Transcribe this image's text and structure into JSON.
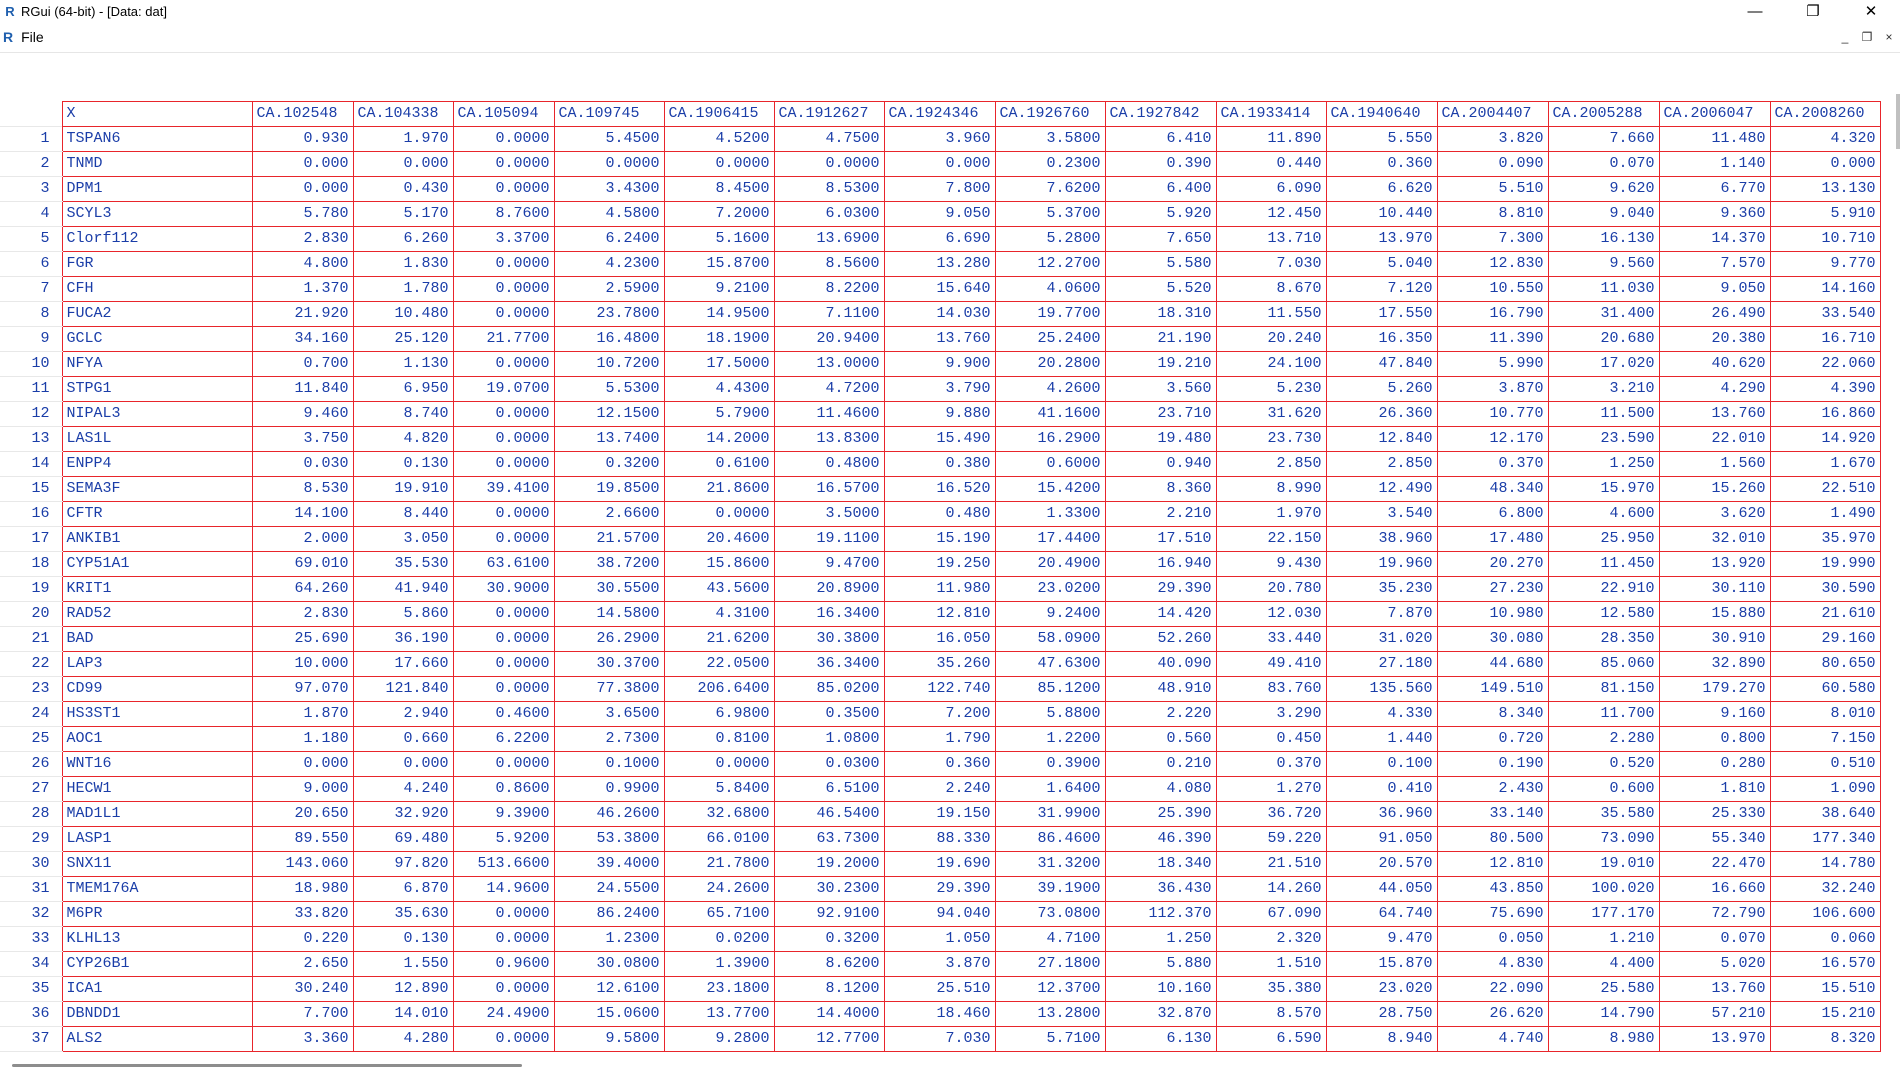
{
  "window": {
    "logo": "R",
    "title": "RGui (64-bit) - [Data: dat]",
    "minimize_icon": "—",
    "maximize_icon": "❐",
    "close_icon": "✕"
  },
  "menubar": {
    "logo": "R",
    "file_label": "File",
    "mdi_minimize": "_",
    "mdi_restore": "❐",
    "mdi_close": "×"
  },
  "grid": {
    "columns": [
      "X",
      "CA.102548",
      "CA.104338",
      "CA.105094",
      "CA.109745",
      "CA.1906415",
      "CA.1912627",
      "CA.1924346",
      "CA.1926760",
      "CA.1927842",
      "CA.1933414",
      "CA.1940640",
      "CA.2004407",
      "CA.2005288",
      "CA.2006047",
      "CA.2008260"
    ],
    "rows": [
      [
        "1",
        "TSPAN6",
        "0.930",
        "1.970",
        "0.0000",
        "5.4500",
        "4.5200",
        "4.7500",
        "3.960",
        "3.5800",
        "6.410",
        "11.890",
        "5.550",
        "3.820",
        "7.660",
        "11.480",
        "4.320"
      ],
      [
        "2",
        "TNMD",
        "0.000",
        "0.000",
        "0.0000",
        "0.0000",
        "0.0000",
        "0.0000",
        "0.000",
        "0.2300",
        "0.390",
        "0.440",
        "0.360",
        "0.090",
        "0.070",
        "1.140",
        "0.000"
      ],
      [
        "3",
        "DPM1",
        "0.000",
        "0.430",
        "0.0000",
        "3.4300",
        "8.4500",
        "8.5300",
        "7.800",
        "7.6200",
        "6.400",
        "6.090",
        "6.620",
        "5.510",
        "9.620",
        "6.770",
        "13.130"
      ],
      [
        "4",
        "SCYL3",
        "5.780",
        "5.170",
        "8.7600",
        "4.5800",
        "7.2000",
        "6.0300",
        "9.050",
        "5.3700",
        "5.920",
        "12.450",
        "10.440",
        "8.810",
        "9.040",
        "9.360",
        "5.910"
      ],
      [
        "5",
        "Clorf112",
        "2.830",
        "6.260",
        "3.3700",
        "6.2400",
        "5.1600",
        "13.6900",
        "6.690",
        "5.2800",
        "7.650",
        "13.710",
        "13.970",
        "7.300",
        "16.130",
        "14.370",
        "10.710"
      ],
      [
        "6",
        "FGR",
        "4.800",
        "1.830",
        "0.0000",
        "4.2300",
        "15.8700",
        "8.5600",
        "13.280",
        "12.2700",
        "5.580",
        "7.030",
        "5.040",
        "12.830",
        "9.560",
        "7.570",
        "9.770"
      ],
      [
        "7",
        "CFH",
        "1.370",
        "1.780",
        "0.0000",
        "2.5900",
        "9.2100",
        "8.2200",
        "15.640",
        "4.0600",
        "5.520",
        "8.670",
        "7.120",
        "10.550",
        "11.030",
        "9.050",
        "14.160"
      ],
      [
        "8",
        "FUCA2",
        "21.920",
        "10.480",
        "0.0000",
        "23.7800",
        "14.9500",
        "7.1100",
        "14.030",
        "19.7700",
        "18.310",
        "11.550",
        "17.550",
        "16.790",
        "31.400",
        "26.490",
        "33.540"
      ],
      [
        "9",
        "GCLC",
        "34.160",
        "25.120",
        "21.7700",
        "16.4800",
        "18.1900",
        "20.9400",
        "13.760",
        "25.2400",
        "21.190",
        "20.240",
        "16.350",
        "11.390",
        "20.680",
        "20.380",
        "16.710"
      ],
      [
        "10",
        "NFYA",
        "0.700",
        "1.130",
        "0.0000",
        "10.7200",
        "17.5000",
        "13.0000",
        "9.900",
        "20.2800",
        "19.210",
        "24.100",
        "47.840",
        "5.990",
        "17.020",
        "40.620",
        "22.060"
      ],
      [
        "11",
        "STPG1",
        "11.840",
        "6.950",
        "19.0700",
        "5.5300",
        "4.4300",
        "4.7200",
        "3.790",
        "4.2600",
        "3.560",
        "5.230",
        "5.260",
        "3.870",
        "3.210",
        "4.290",
        "4.390"
      ],
      [
        "12",
        "NIPAL3",
        "9.460",
        "8.740",
        "0.0000",
        "12.1500",
        "5.7900",
        "11.4600",
        "9.880",
        "41.1600",
        "23.710",
        "31.620",
        "26.360",
        "10.770",
        "11.500",
        "13.760",
        "16.860"
      ],
      [
        "13",
        "LAS1L",
        "3.750",
        "4.820",
        "0.0000",
        "13.7400",
        "14.2000",
        "13.8300",
        "15.490",
        "16.2900",
        "19.480",
        "23.730",
        "12.840",
        "12.170",
        "23.590",
        "22.010",
        "14.920"
      ],
      [
        "14",
        "ENPP4",
        "0.030",
        "0.130",
        "0.0000",
        "0.3200",
        "0.6100",
        "0.4800",
        "0.380",
        "0.6000",
        "0.940",
        "2.850",
        "2.850",
        "0.370",
        "1.250",
        "1.560",
        "1.670"
      ],
      [
        "15",
        "SEMA3F",
        "8.530",
        "19.910",
        "39.4100",
        "19.8500",
        "21.8600",
        "16.5700",
        "16.520",
        "15.4200",
        "8.360",
        "8.990",
        "12.490",
        "48.340",
        "15.970",
        "15.260",
        "22.510"
      ],
      [
        "16",
        "CFTR",
        "14.100",
        "8.440",
        "0.0000",
        "2.6600",
        "0.0000",
        "3.5000",
        "0.480",
        "1.3300",
        "2.210",
        "1.970",
        "3.540",
        "6.800",
        "4.600",
        "3.620",
        "1.490"
      ],
      [
        "17",
        "ANKIB1",
        "2.000",
        "3.050",
        "0.0000",
        "21.5700",
        "20.4600",
        "19.1100",
        "15.190",
        "17.4400",
        "17.510",
        "22.150",
        "38.960",
        "17.480",
        "25.950",
        "32.010",
        "35.970"
      ],
      [
        "18",
        "CYP51A1",
        "69.010",
        "35.530",
        "63.6100",
        "38.7200",
        "15.8600",
        "9.4700",
        "19.250",
        "20.4900",
        "16.940",
        "9.430",
        "19.960",
        "20.270",
        "11.450",
        "13.920",
        "19.990"
      ],
      [
        "19",
        "KRIT1",
        "64.260",
        "41.940",
        "30.9000",
        "30.5500",
        "43.5600",
        "20.8900",
        "11.980",
        "23.0200",
        "29.390",
        "20.780",
        "35.230",
        "27.230",
        "22.910",
        "30.110",
        "30.590"
      ],
      [
        "20",
        "RAD52",
        "2.830",
        "5.860",
        "0.0000",
        "14.5800",
        "4.3100",
        "16.3400",
        "12.810",
        "9.2400",
        "14.420",
        "12.030",
        "7.870",
        "10.980",
        "12.580",
        "15.880",
        "21.610"
      ],
      [
        "21",
        "BAD",
        "25.690",
        "36.190",
        "0.0000",
        "26.2900",
        "21.6200",
        "30.3800",
        "16.050",
        "58.0900",
        "52.260",
        "33.440",
        "31.020",
        "30.080",
        "28.350",
        "30.910",
        "29.160"
      ],
      [
        "22",
        "LAP3",
        "10.000",
        "17.660",
        "0.0000",
        "30.3700",
        "22.0500",
        "36.3400",
        "35.260",
        "47.6300",
        "40.090",
        "49.410",
        "27.180",
        "44.680",
        "85.060",
        "32.890",
        "80.650"
      ],
      [
        "23",
        "CD99",
        "97.070",
        "121.840",
        "0.0000",
        "77.3800",
        "206.6400",
        "85.0200",
        "122.740",
        "85.1200",
        "48.910",
        "83.760",
        "135.560",
        "149.510",
        "81.150",
        "179.270",
        "60.580"
      ],
      [
        "24",
        "HS3ST1",
        "1.870",
        "2.940",
        "0.4600",
        "3.6500",
        "6.9800",
        "0.3500",
        "7.200",
        "5.8800",
        "2.220",
        "3.290",
        "4.330",
        "8.340",
        "11.700",
        "9.160",
        "8.010"
      ],
      [
        "25",
        "AOC1",
        "1.180",
        "0.660",
        "6.2200",
        "2.7300",
        "0.8100",
        "1.0800",
        "1.790",
        "1.2200",
        "0.560",
        "0.450",
        "1.440",
        "0.720",
        "2.280",
        "0.800",
        "7.150"
      ],
      [
        "26",
        "WNT16",
        "0.000",
        "0.000",
        "0.0000",
        "0.1000",
        "0.0000",
        "0.0300",
        "0.360",
        "0.3900",
        "0.210",
        "0.370",
        "0.100",
        "0.190",
        "0.520",
        "0.280",
        "0.510"
      ],
      [
        "27",
        "HECW1",
        "9.000",
        "4.240",
        "0.8600",
        "0.9900",
        "5.8400",
        "6.5100",
        "2.240",
        "1.6400",
        "4.080",
        "1.270",
        "0.410",
        "2.430",
        "0.600",
        "1.810",
        "1.090"
      ],
      [
        "28",
        "MAD1L1",
        "20.650",
        "32.920",
        "9.3900",
        "46.2600",
        "32.6800",
        "46.5400",
        "19.150",
        "31.9900",
        "25.390",
        "36.720",
        "36.960",
        "33.140",
        "35.580",
        "25.330",
        "38.640"
      ],
      [
        "29",
        "LASP1",
        "89.550",
        "69.480",
        "5.9200",
        "53.3800",
        "66.0100",
        "63.7300",
        "88.330",
        "86.4600",
        "46.390",
        "59.220",
        "91.050",
        "80.500",
        "73.090",
        "55.340",
        "177.340"
      ],
      [
        "30",
        "SNX11",
        "143.060",
        "97.820",
        "513.6600",
        "39.4000",
        "21.7800",
        "19.2000",
        "19.690",
        "31.3200",
        "18.340",
        "21.510",
        "20.570",
        "12.810",
        "19.010",
        "22.470",
        "14.780"
      ],
      [
        "31",
        "TMEM176A",
        "18.980",
        "6.870",
        "14.9600",
        "24.5500",
        "24.2600",
        "30.2300",
        "29.390",
        "39.1900",
        "36.430",
        "14.260",
        "44.050",
        "43.850",
        "100.020",
        "16.660",
        "32.240"
      ],
      [
        "32",
        "M6PR",
        "33.820",
        "35.630",
        "0.0000",
        "86.2400",
        "65.7100",
        "92.9100",
        "94.040",
        "73.0800",
        "112.370",
        "67.090",
        "64.740",
        "75.690",
        "177.170",
        "72.790",
        "106.600"
      ],
      [
        "33",
        "KLHL13",
        "0.220",
        "0.130",
        "0.0000",
        "1.2300",
        "0.0200",
        "0.3200",
        "1.050",
        "4.7100",
        "1.250",
        "2.320",
        "9.470",
        "0.050",
        "1.210",
        "0.070",
        "0.060"
      ],
      [
        "34",
        "CYP26B1",
        "2.650",
        "1.550",
        "0.9600",
        "30.0800",
        "1.3900",
        "8.6200",
        "3.870",
        "27.1800",
        "5.880",
        "1.510",
        "15.870",
        "4.830",
        "4.400",
        "5.020",
        "16.570"
      ],
      [
        "35",
        "ICA1",
        "30.240",
        "12.890",
        "0.0000",
        "12.6100",
        "23.1800",
        "8.1200",
        "25.510",
        "12.3700",
        "10.160",
        "35.380",
        "23.020",
        "22.090",
        "25.580",
        "13.760",
        "15.510"
      ],
      [
        "36",
        "DBNDD1",
        "7.700",
        "14.010",
        "24.4900",
        "15.0600",
        "13.7700",
        "14.4000",
        "18.460",
        "13.2800",
        "32.870",
        "8.570",
        "28.750",
        "26.620",
        "14.790",
        "57.210",
        "15.210"
      ],
      [
        "37",
        "ALS2",
        "3.360",
        "4.280",
        "0.0000",
        "9.5800",
        "9.2800",
        "12.7700",
        "7.030",
        "5.7100",
        "6.130",
        "6.590",
        "8.940",
        "4.740",
        "8.980",
        "13.970",
        "8.320"
      ]
    ]
  }
}
